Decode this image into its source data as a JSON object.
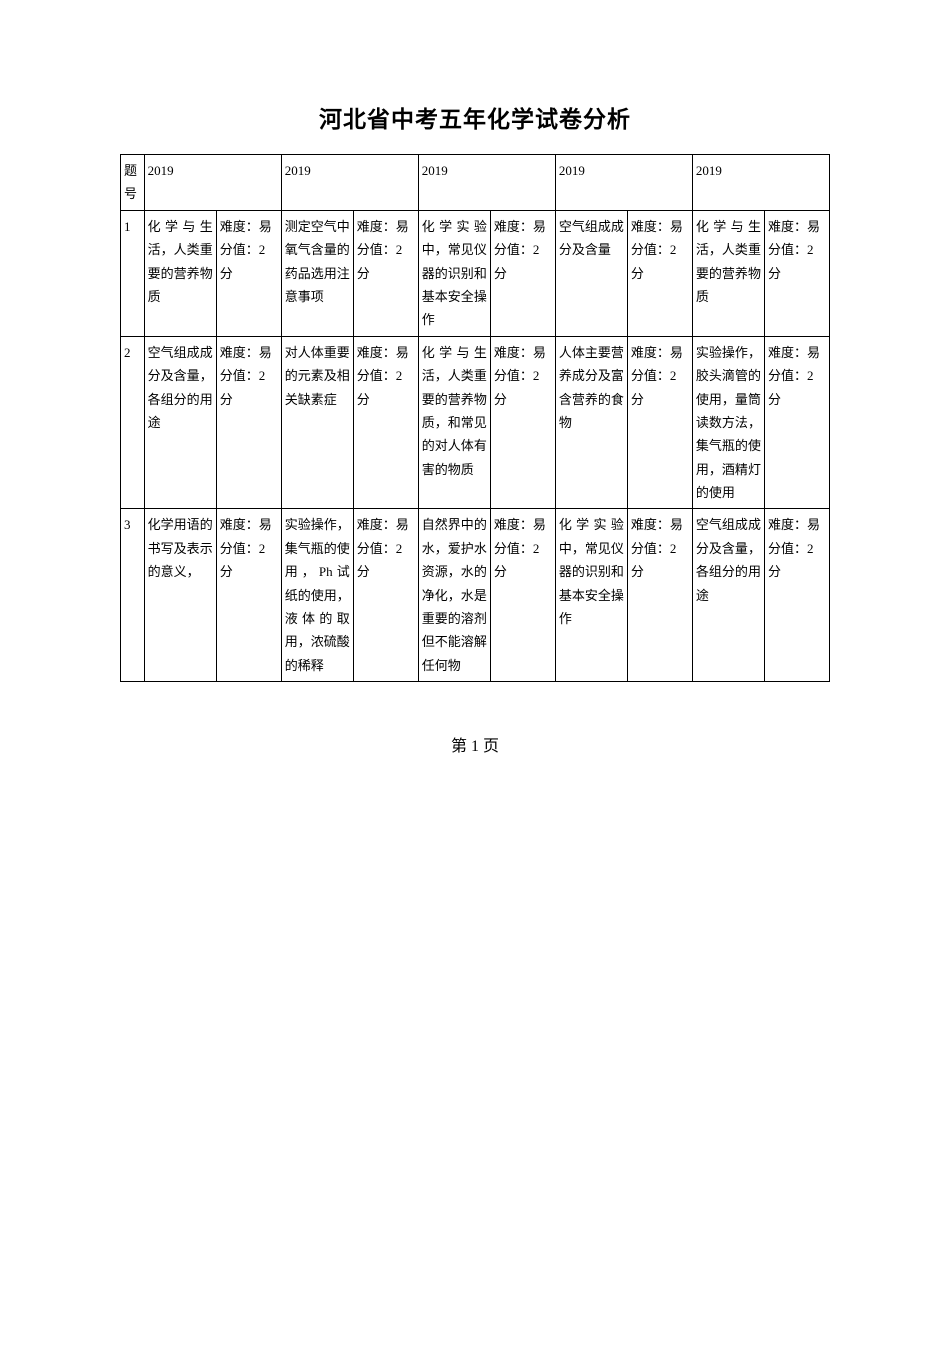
{
  "title": "河北省中考五年化学试卷分析",
  "footer": "第 1 页",
  "headers": {
    "questionNum": "题号",
    "years": [
      "2019",
      "2019",
      "2019",
      "2019",
      "2019"
    ]
  },
  "rows": [
    {
      "num": "1",
      "cells": [
        {
          "topic": "化学与生活，人类重要的营养物质",
          "meta": "难度：易\n分值：2分"
        },
        {
          "topic": "测定空气中氧气含量的药品选用注意事项",
          "meta": "难度：易\n分值：2分"
        },
        {
          "topic": "化学实验中，常见仪器的识别和基本安全操作",
          "meta": "难度：易\n分值：2分"
        },
        {
          "topic": "空气组成成分及含量",
          "meta": "难度：易\n分值：2分"
        },
        {
          "topic": "化学与生活，人类重要的营养物质",
          "meta": "难度：易\n分值：2分"
        }
      ]
    },
    {
      "num": "2",
      "cells": [
        {
          "topic": "空气组成成分及含量，各组分的用途",
          "meta": "难度：易\n分值：2分"
        },
        {
          "topic": "对人体重要的元素及相关缺素症",
          "meta": "难度：易\n分值：2分"
        },
        {
          "topic": "化学与生活，人类重要的营养物质，和常见的对人体有害的物质",
          "meta": "难度：易\n分值：2分"
        },
        {
          "topic": "人体主要营养成分及富含营养的食物",
          "meta": "难度：易\n分值：2分"
        },
        {
          "topic": "实验操作，胶头滴管的使用，量筒读数方法，集气瓶的使用，酒精灯的使用",
          "meta": "难度：易\n分值：2分"
        }
      ]
    },
    {
      "num": "3",
      "cells": [
        {
          "topic": "化学用语的书写及表示的意义，",
          "meta": "难度：易\n分值：2分"
        },
        {
          "topic": "实验操作，集气瓶的使用，Ph试纸的使用，液体的取用，浓硫酸的稀释",
          "meta": "难度：易\n分值：2分"
        },
        {
          "topic": "自然界中的水，爱护水资源，水的净化，水是重要的溶剂但不能溶解任何物",
          "meta": "难度：易\n分值：2分"
        },
        {
          "topic": "化学实验中，常见仪器的识别和基本安全操作",
          "meta": "难度：易\n分值：2分"
        },
        {
          "topic": "空气组成成分及含量，各组分的用途",
          "meta": "难度：易\n分值：2分"
        }
      ]
    }
  ]
}
